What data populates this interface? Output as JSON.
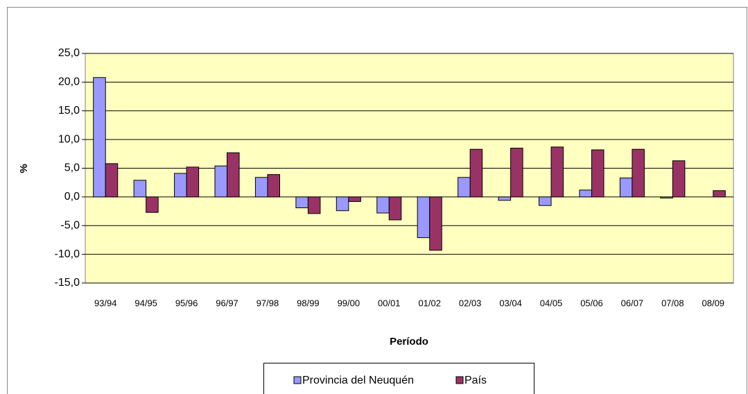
{
  "chart_data": {
    "type": "bar",
    "x_label": "Período",
    "y_label": "%",
    "categories": [
      "93/94",
      "94/95",
      "95/96",
      "96/97",
      "97/98",
      "98/99",
      "99/00",
      "00/01",
      "01/02",
      "02/03",
      "03/04",
      "04/05",
      "05/06",
      "06/07",
      "07/08",
      "08/09"
    ],
    "series": [
      {
        "name": "Provincia del Neuquén",
        "color": "#9999ff",
        "values": [
          20.8,
          2.9,
          4.1,
          5.4,
          3.4,
          -1.9,
          -2.4,
          -2.8,
          -7.1,
          3.4,
          -0.6,
          -1.5,
          1.2,
          3.3,
          -0.2,
          null
        ]
      },
      {
        "name": "País",
        "color": "#993366",
        "values": [
          5.8,
          -2.7,
          5.2,
          7.7,
          3.9,
          -2.9,
          -0.8,
          -4.0,
          -9.3,
          8.3,
          8.5,
          8.7,
          8.2,
          8.3,
          6.3,
          1.1
        ]
      }
    ],
    "ylim": [
      -15,
      25
    ],
    "yticks": [
      {
        "value": -15,
        "label": "-15,0"
      },
      {
        "value": -10,
        "label": "-10,0"
      },
      {
        "value": -5,
        "label": "-5,0"
      },
      {
        "value": 0,
        "label": "0,0"
      },
      {
        "value": 5,
        "label": "5,0"
      },
      {
        "value": 10,
        "label": "10,0"
      },
      {
        "value": 15,
        "label": "15,0"
      },
      {
        "value": 20,
        "label": "20,0"
      },
      {
        "value": 25,
        "label": "25,0"
      }
    ],
    "grid": true,
    "legend": "bottom",
    "plot_background": "#ffffc0"
  }
}
